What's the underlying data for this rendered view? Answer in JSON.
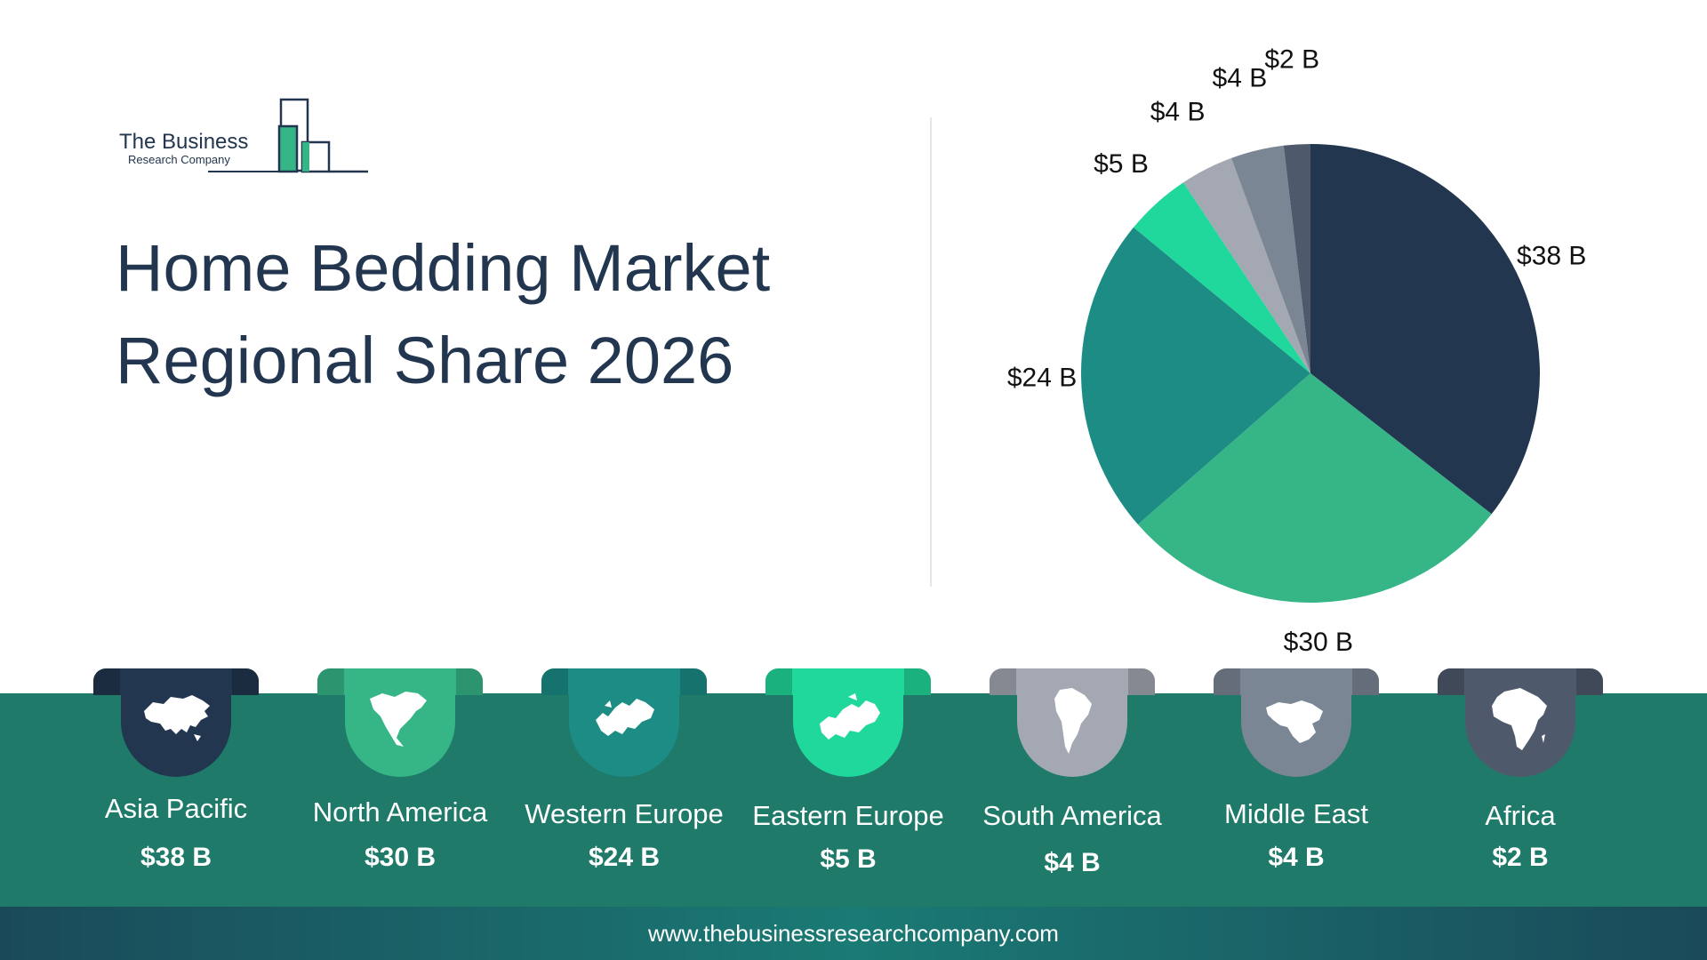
{
  "logo": {
    "line1": "The Business",
    "line2": "Research Company"
  },
  "title": {
    "line1": "Home Bedding Market",
    "line2": "Regional Share 2026"
  },
  "footer": {
    "url": "www.thebusinessresearchcompany.com"
  },
  "colors": {
    "asia_pacific": "#22364f",
    "north_america": "#36b587",
    "western_europe": "#1c8c84",
    "eastern_europe": "#20d89c",
    "south_america": "#a3a8b3",
    "middle_east": "#7a8694",
    "africa": "#4e5a6c",
    "band": "#1f7a6a"
  },
  "chart_data": {
    "type": "pie",
    "title": "Home Bedding Market Regional Share 2026",
    "unit": "$ B",
    "slices": [
      {
        "name": "Asia Pacific",
        "value": 38,
        "label": "$38 B",
        "color": "#22364f"
      },
      {
        "name": "North America",
        "value": 30,
        "label": "$30 B",
        "color": "#36b587"
      },
      {
        "name": "Western Europe",
        "value": 24,
        "label": "$24 B",
        "color": "#1c8c84"
      },
      {
        "name": "Eastern Europe",
        "value": 5,
        "label": "$5 B",
        "color": "#20d89c"
      },
      {
        "name": "South America",
        "value": 4,
        "label": "$4 B",
        "color": "#a3a8b3"
      },
      {
        "name": "Middle East",
        "value": 4,
        "label": "$4 B",
        "color": "#7a8694"
      },
      {
        "name": "Africa",
        "value": 2,
        "label": "$2 B",
        "color": "#4e5a6c"
      }
    ]
  },
  "regions": [
    {
      "name": "Asia Pacific",
      "value": "$38 B",
      "icon": "asia-map-icon"
    },
    {
      "name": "North America",
      "value": "$30 B",
      "icon": "north-america-map-icon"
    },
    {
      "name": "Western Europe",
      "value": "$24 B",
      "icon": "western-europe-map-icon"
    },
    {
      "name": "Eastern Europe",
      "value": "$5 B",
      "icon": "eastern-europe-map-icon"
    },
    {
      "name": "South America",
      "value": "$4 B",
      "icon": "south-america-map-icon"
    },
    {
      "name": "Middle East",
      "value": "$4 B",
      "icon": "middle-east-map-icon"
    },
    {
      "name": "Africa",
      "value": "$2 B",
      "icon": "africa-map-icon"
    }
  ]
}
